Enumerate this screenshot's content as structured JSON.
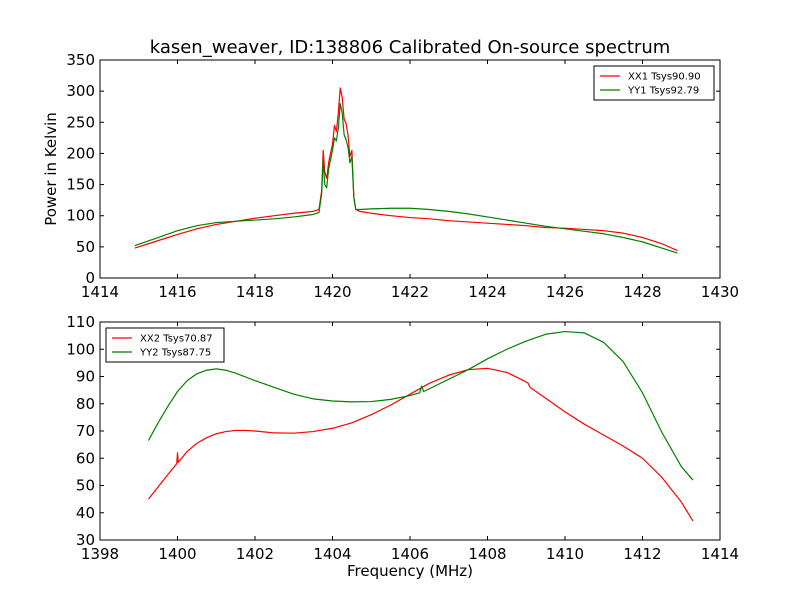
{
  "figure": {
    "title": "kasen_weaver, ID:138806 Calibrated On-source spectrum"
  },
  "chart_data": [
    {
      "type": "line",
      "ylabel": "Power in Kelvin",
      "xlabel": "",
      "xlim": [
        1414,
        1430
      ],
      "ylim": [
        0,
        350
      ],
      "xticks": [
        1414,
        1416,
        1418,
        1420,
        1422,
        1424,
        1426,
        1428,
        1430
      ],
      "yticks": [
        0,
        50,
        100,
        150,
        200,
        250,
        300,
        350
      ],
      "grid": false,
      "legend_position": "top-right",
      "series": [
        {
          "name": "XX1 Tsys90.90",
          "color": "#ff0000",
          "x": [
            1414.9,
            1415.5,
            1416.0,
            1416.5,
            1417.0,
            1417.5,
            1418.0,
            1418.5,
            1419.0,
            1419.5,
            1419.65,
            1419.72,
            1419.76,
            1419.8,
            1419.85,
            1419.9,
            1419.95,
            1420.0,
            1420.05,
            1420.1,
            1420.15,
            1420.2,
            1420.25,
            1420.3,
            1420.35,
            1420.4,
            1420.45,
            1420.5,
            1420.55,
            1420.6,
            1420.7,
            1421.0,
            1421.5,
            1422.0,
            1422.5,
            1423.0,
            1423.5,
            1424.0,
            1424.5,
            1425.0,
            1425.5,
            1426.0,
            1426.5,
            1427.0,
            1427.5,
            1428.0,
            1428.5,
            1428.9
          ],
          "y": [
            48,
            60,
            70,
            79,
            86,
            91,
            96,
            100,
            104,
            107,
            110,
            140,
            205,
            170,
            160,
            185,
            200,
            215,
            245,
            235,
            265,
            305,
            290,
            255,
            248,
            230,
            195,
            205,
            130,
            110,
            107,
            104,
            100,
            97,
            95,
            92,
            90,
            88,
            86,
            84,
            81,
            80,
            78,
            76,
            72,
            65,
            55,
            44
          ]
        },
        {
          "name": "YY1 Tsys92.79",
          "color": "#008000",
          "x": [
            1414.9,
            1415.5,
            1416.0,
            1416.5,
            1417.0,
            1417.5,
            1418.0,
            1418.5,
            1419.0,
            1419.5,
            1419.65,
            1419.72,
            1419.76,
            1419.8,
            1419.85,
            1419.9,
            1419.95,
            1420.0,
            1420.05,
            1420.1,
            1420.15,
            1420.2,
            1420.25,
            1420.3,
            1420.35,
            1420.4,
            1420.45,
            1420.5,
            1420.55,
            1420.6,
            1420.7,
            1421.0,
            1421.5,
            1422.0,
            1422.5,
            1423.0,
            1423.5,
            1424.0,
            1424.5,
            1425.0,
            1425.5,
            1426.0,
            1426.5,
            1427.0,
            1427.5,
            1428.0,
            1428.5,
            1428.9
          ],
          "y": [
            52,
            65,
            76,
            84,
            89,
            91,
            93,
            95,
            98,
            102,
            105,
            135,
            190,
            150,
            145,
            175,
            190,
            205,
            225,
            220,
            240,
            280,
            265,
            230,
            222,
            210,
            185,
            195,
            130,
            110,
            110,
            111,
            112,
            112,
            110,
            107,
            103,
            98,
            93,
            88,
            83,
            79,
            75,
            71,
            65,
            58,
            48,
            40
          ]
        }
      ]
    },
    {
      "type": "line",
      "ylabel": "",
      "xlabel": "Frequency (MHz)",
      "xlim": [
        1398,
        1414
      ],
      "ylim": [
        30,
        110
      ],
      "xticks": [
        1398,
        1400,
        1402,
        1404,
        1406,
        1408,
        1410,
        1412,
        1414
      ],
      "yticks": [
        30,
        40,
        50,
        60,
        70,
        80,
        90,
        100,
        110
      ],
      "grid": false,
      "legend_position": "top-left",
      "series": [
        {
          "name": "XX2 Tsys70.87",
          "color": "#ff0000",
          "x": [
            1399.25,
            1399.5,
            1399.75,
            1399.98,
            1400.0,
            1400.02,
            1400.25,
            1400.5,
            1400.75,
            1401.0,
            1401.25,
            1401.5,
            1401.75,
            1402.0,
            1402.5,
            1403.0,
            1403.5,
            1404.0,
            1404.5,
            1405.0,
            1405.5,
            1406.0,
            1406.5,
            1407.0,
            1407.5,
            1408.0,
            1408.5,
            1409.0,
            1409.05,
            1409.1,
            1409.5,
            1410.0,
            1410.5,
            1411.0,
            1411.5,
            1412.0,
            1412.5,
            1413.0,
            1413.3
          ],
          "y": [
            45,
            49.5,
            54,
            58,
            62,
            58.5,
            62.5,
            65.5,
            67.5,
            69,
            69.8,
            70.2,
            70.2,
            70,
            69.3,
            69.2,
            69.8,
            71,
            73,
            76,
            79.5,
            83.5,
            87.5,
            90.5,
            92.5,
            93,
            91.5,
            88,
            87.5,
            86,
            82,
            77,
            72.5,
            68.5,
            64.5,
            60,
            53,
            44,
            37
          ]
        },
        {
          "name": "YY2 Tsys87.75",
          "color": "#008000",
          "x": [
            1399.25,
            1399.5,
            1399.75,
            1400.0,
            1400.25,
            1400.5,
            1400.75,
            1401.0,
            1401.25,
            1401.5,
            1402.0,
            1402.5,
            1403.0,
            1403.5,
            1404.0,
            1404.5,
            1405.0,
            1405.5,
            1406.0,
            1406.25,
            1406.3,
            1406.35,
            1406.5,
            1407.0,
            1407.5,
            1408.0,
            1408.5,
            1409.0,
            1409.5,
            1410.0,
            1410.5,
            1411.0,
            1411.5,
            1412.0,
            1412.5,
            1413.0,
            1413.3
          ],
          "y": [
            66.5,
            73,
            79,
            84.5,
            88.5,
            91,
            92.3,
            92.8,
            92.3,
            91.2,
            88.5,
            86,
            83.5,
            81.8,
            81,
            80.7,
            80.8,
            81.6,
            83,
            84,
            86.5,
            84.5,
            85.5,
            89,
            92.5,
            96.5,
            100,
            103,
            105.5,
            106.5,
            106,
            102.5,
            95.5,
            84,
            69.5,
            57,
            52
          ]
        }
      ]
    }
  ]
}
